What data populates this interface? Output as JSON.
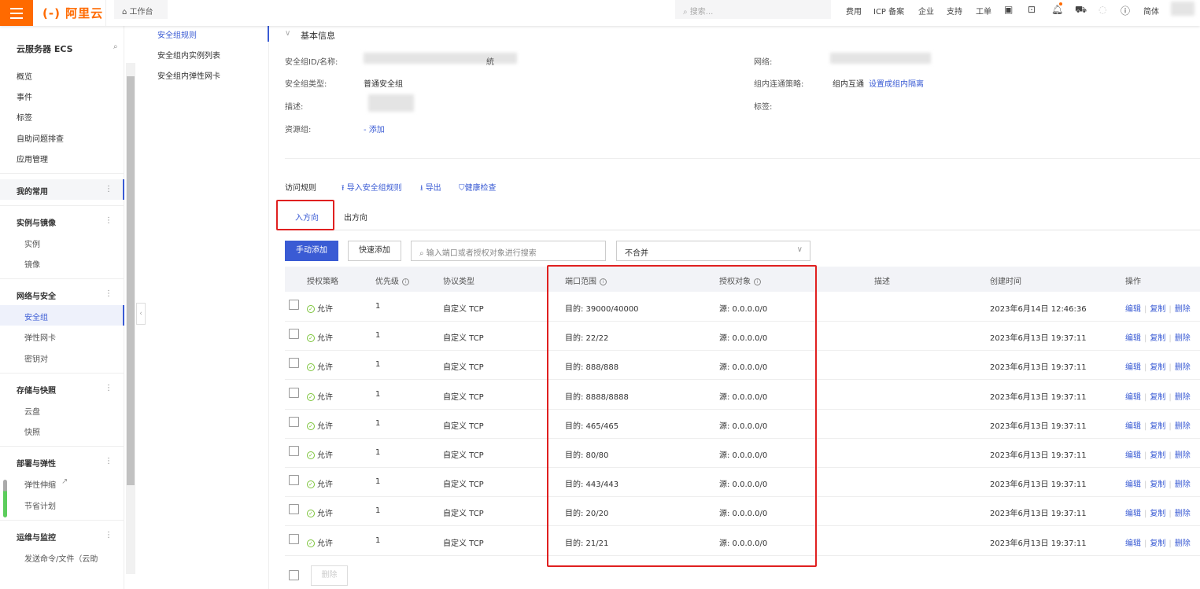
{
  "topbar": {
    "logo": "(-) 阿里云",
    "workbench": "工作台",
    "search_placeholder": "搜索...",
    "nav": [
      "费用",
      "ICP 备案",
      "企业",
      "支持",
      "工单"
    ],
    "lang": "简体",
    "notification_dot_color": "#ff6a00",
    "brand_color": "#ff6a00"
  },
  "sidebar": {
    "title": "云服务器 ECS",
    "items": [
      {
        "label": "概览",
        "type": "item"
      },
      {
        "label": "事件",
        "type": "item"
      },
      {
        "label": "标签",
        "type": "item"
      },
      {
        "label": "自助问题排查",
        "type": "item"
      },
      {
        "label": "应用管理",
        "type": "item"
      },
      {
        "label": "我的常用",
        "type": "group"
      },
      {
        "label": "实例与镜像",
        "type": "group"
      },
      {
        "label": "实例",
        "type": "sub"
      },
      {
        "label": "镜像",
        "type": "sub"
      },
      {
        "label": "网络与安全",
        "type": "group"
      },
      {
        "label": "安全组",
        "type": "sub",
        "active": true
      },
      {
        "label": "弹性网卡",
        "type": "sub"
      },
      {
        "label": "密钥对",
        "type": "sub"
      },
      {
        "label": "存储与快照",
        "type": "group"
      },
      {
        "label": "云盘",
        "type": "sub"
      },
      {
        "label": "快照",
        "type": "sub"
      },
      {
        "label": "部署与弹性",
        "type": "group"
      },
      {
        "label": "弹性伸缩",
        "type": "sub",
        "external": true
      },
      {
        "label": "节省计划",
        "type": "sub"
      },
      {
        "label": "运维与监控",
        "type": "group"
      },
      {
        "label": "发送命令/文件（云助",
        "type": "sub"
      }
    ]
  },
  "subnav": {
    "items": [
      "安全组规则",
      "安全组内实例列表",
      "安全组内弹性网卡"
    ],
    "active": 0
  },
  "basic": {
    "title": "基本信息",
    "id_label": "安全组ID/名称:",
    "id_suffix": "統",
    "type_label": "安全组类型:",
    "type_value": "普通安全组",
    "desc_label": "描述:",
    "rg_label": "资源组:",
    "rg_value": "- 添加",
    "net_label": "网络:",
    "policy_label": "组内连通策略:",
    "policy_value": "组内互通",
    "policy_link": "设置成组内隔离",
    "tag_label": "标签:"
  },
  "rules": {
    "title": "访问规则",
    "import": "导入安全组规则",
    "export": "导出",
    "health": "健康检查",
    "tabs": [
      "入方向",
      "出方向"
    ],
    "active_tab": 0,
    "add_manual": "手动添加",
    "add_quick": "快速添加",
    "search_placeholder": "输入端口或者授权对象进行搜索",
    "merge_select": "不合并",
    "delete": "删除",
    "accent": "#3a5bd4",
    "columns": [
      "授权策略",
      "优先级",
      "协议类型",
      "端口范围",
      "授权对象",
      "描述",
      "创建时间",
      "操作"
    ],
    "ops": [
      "编辑",
      "复制",
      "删除"
    ],
    "rows": [
      {
        "policy": "允许",
        "priority": "1",
        "protocol": "自定义 TCP",
        "port": "目的: 39000/40000",
        "source": "源: 0.0.0.0/0",
        "desc": "",
        "created": "2023年6月14日 12:46:36"
      },
      {
        "policy": "允许",
        "priority": "1",
        "protocol": "自定义 TCP",
        "port": "目的: 22/22",
        "source": "源: 0.0.0.0/0",
        "desc": "",
        "created": "2023年6月13日 19:37:11"
      },
      {
        "policy": "允许",
        "priority": "1",
        "protocol": "自定义 TCP",
        "port": "目的: 888/888",
        "source": "源: 0.0.0.0/0",
        "desc": "",
        "created": "2023年6月13日 19:37:11"
      },
      {
        "policy": "允许",
        "priority": "1",
        "protocol": "自定义 TCP",
        "port": "目的: 8888/8888",
        "source": "源: 0.0.0.0/0",
        "desc": "",
        "created": "2023年6月13日 19:37:11"
      },
      {
        "policy": "允许",
        "priority": "1",
        "protocol": "自定义 TCP",
        "port": "目的: 465/465",
        "source": "源: 0.0.0.0/0",
        "desc": "",
        "created": "2023年6月13日 19:37:11"
      },
      {
        "policy": "允许",
        "priority": "1",
        "protocol": "自定义 TCP",
        "port": "目的: 80/80",
        "source": "源: 0.0.0.0/0",
        "desc": "",
        "created": "2023年6月13日 19:37:11"
      },
      {
        "policy": "允许",
        "priority": "1",
        "protocol": "自定义 TCP",
        "port": "目的: 443/443",
        "source": "源: 0.0.0.0/0",
        "desc": "",
        "created": "2023年6月13日 19:37:11"
      },
      {
        "policy": "允许",
        "priority": "1",
        "protocol": "自定义 TCP",
        "port": "目的: 20/20",
        "source": "源: 0.0.0.0/0",
        "desc": "",
        "created": "2023年6月13日 19:37:11"
      },
      {
        "policy": "允许",
        "priority": "1",
        "protocol": "自定义 TCP",
        "port": "目的: 21/21",
        "source": "源: 0.0.0.0/0",
        "desc": "",
        "created": "2023年6月13日 19:37:11"
      }
    ]
  }
}
